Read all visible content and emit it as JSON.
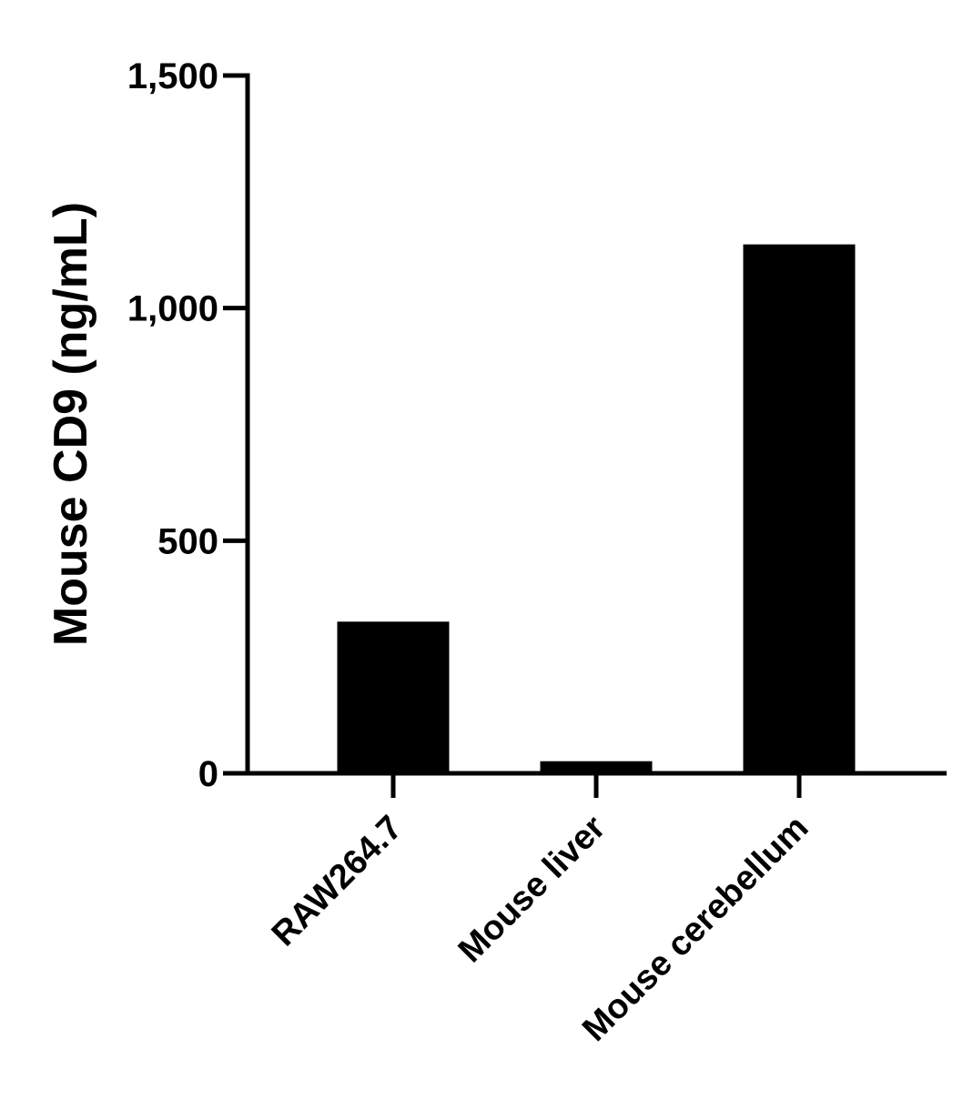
{
  "chart_data": {
    "type": "bar",
    "title": "",
    "xlabel": "",
    "ylabel": "Mouse CD9 (ng/mL)",
    "categories": [
      "RAW264.7",
      "Mouse liver",
      "Mouse cerebellum"
    ],
    "values": [
      326,
      26,
      1137
    ],
    "ylim": [
      0,
      1500
    ],
    "yticks": [
      0,
      500,
      1000,
      1500
    ],
    "ytick_labels": [
      "0",
      "500",
      "1,000",
      "1,500"
    ],
    "grid": false,
    "legend": "none",
    "bar_color": "#000000"
  }
}
